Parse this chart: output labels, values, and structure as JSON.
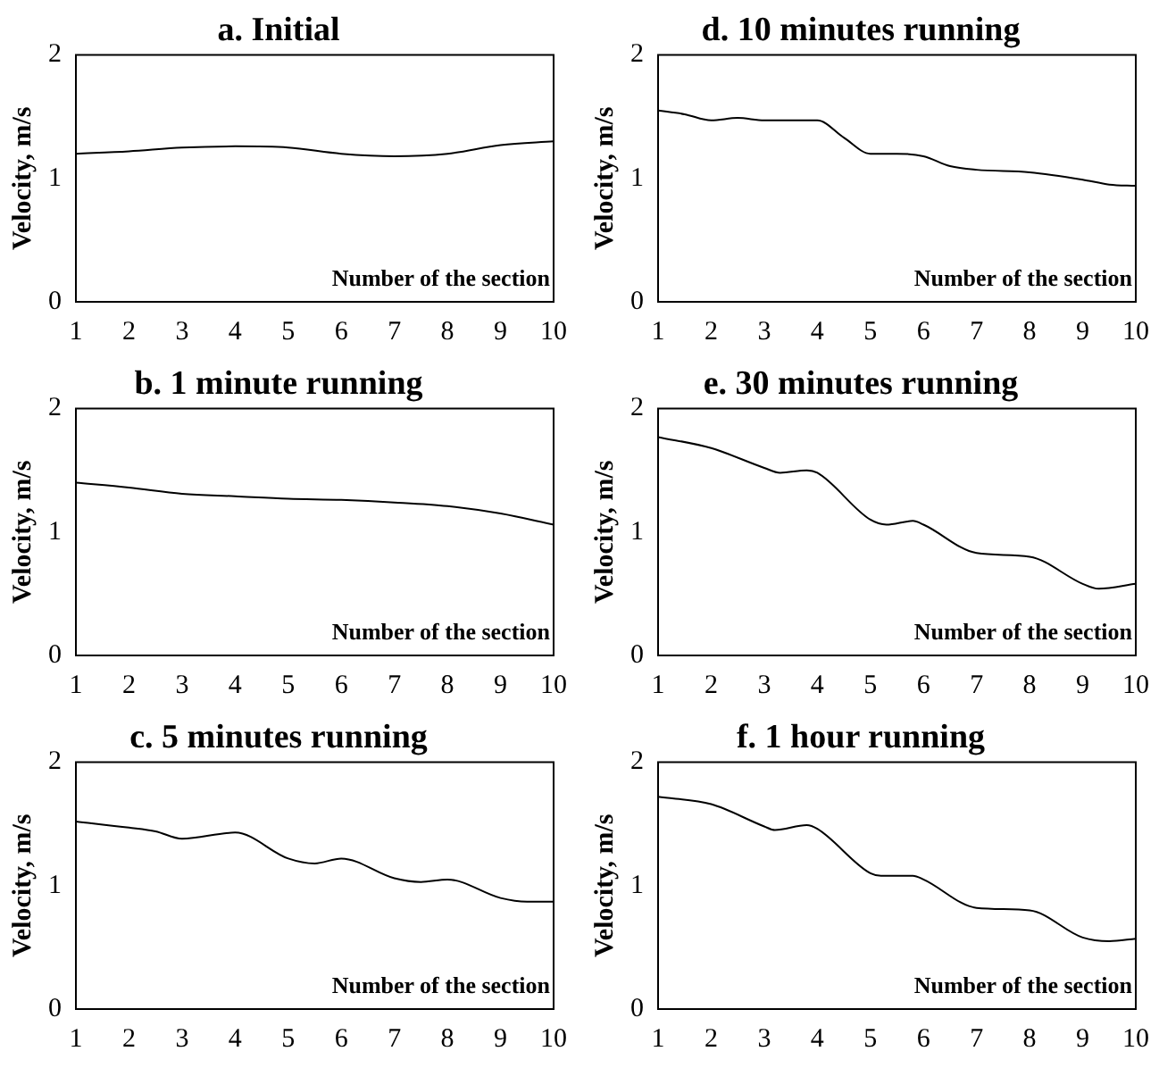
{
  "chart_data": [
    {
      "type": "line",
      "title": "a. Initial",
      "xlabel": "Number of the section",
      "ylabel": "Velocity, m/s",
      "color": "#000000",
      "xlim": [
        1,
        10
      ],
      "ylim": [
        0,
        2
      ],
      "xticks": [
        1,
        2,
        3,
        4,
        5,
        6,
        7,
        8,
        9,
        10
      ],
      "yticks": [
        0,
        1,
        2
      ],
      "x": [
        1,
        2,
        3,
        4,
        5,
        6,
        7,
        8,
        9,
        10
      ],
      "values": [
        1.2,
        1.22,
        1.25,
        1.26,
        1.25,
        1.2,
        1.18,
        1.2,
        1.27,
        1.3
      ]
    },
    {
      "type": "line",
      "title": "d. 10 minutes running",
      "xlabel": "Number of the section",
      "ylabel": "Velocity, m/s",
      "color": "#000000",
      "xlim": [
        1,
        10
      ],
      "ylim": [
        0,
        2
      ],
      "xticks": [
        1,
        2,
        3,
        4,
        5,
        6,
        7,
        8,
        9,
        10
      ],
      "yticks": [
        0,
        1,
        2
      ],
      "x": [
        1,
        1.5,
        2,
        2.5,
        3,
        4,
        4.5,
        5,
        5.5,
        6,
        6.5,
        7,
        8,
        9,
        9.5,
        10
      ],
      "values": [
        1.55,
        1.52,
        1.47,
        1.49,
        1.47,
        1.47,
        1.33,
        1.2,
        1.2,
        1.18,
        1.1,
        1.07,
        1.05,
        0.99,
        0.95,
        0.94
      ]
    },
    {
      "type": "line",
      "title": "b. 1 minute running",
      "xlabel": "Number of the section",
      "ylabel": "Velocity, m/s",
      "color": "#000000",
      "xlim": [
        1,
        10
      ],
      "ylim": [
        0,
        2
      ],
      "xticks": [
        1,
        2,
        3,
        4,
        5,
        6,
        7,
        8,
        9,
        10
      ],
      "yticks": [
        0,
        1,
        2
      ],
      "x": [
        1,
        2,
        3,
        4,
        5,
        6,
        7,
        8,
        9,
        10
      ],
      "values": [
        1.4,
        1.36,
        1.31,
        1.29,
        1.27,
        1.26,
        1.24,
        1.21,
        1.15,
        1.06
      ]
    },
    {
      "type": "line",
      "title": "e. 30 minutes running",
      "xlabel": "Number of the section",
      "ylabel": "Velocity, m/s",
      "color": "#000000",
      "xlim": [
        1,
        10
      ],
      "ylim": [
        0,
        2
      ],
      "xticks": [
        1,
        2,
        3,
        4,
        5,
        6,
        7,
        8,
        9,
        10
      ],
      "yticks": [
        0,
        1,
        2
      ],
      "x": [
        1,
        2,
        3,
        3.3,
        3.8,
        4,
        5,
        5.3,
        5.8,
        6,
        7,
        8,
        9,
        9.3,
        10
      ],
      "values": [
        1.77,
        1.68,
        1.52,
        1.48,
        1.5,
        1.48,
        1.1,
        1.06,
        1.09,
        1.06,
        0.83,
        0.8,
        0.58,
        0.54,
        0.58
      ]
    },
    {
      "type": "line",
      "title": "c. 5 minutes running",
      "xlabel": "Number of the section",
      "ylabel": "Velocity, m/s",
      "color": "#000000",
      "xlim": [
        1,
        10
      ],
      "ylim": [
        0,
        2
      ],
      "xticks": [
        1,
        2,
        3,
        4,
        5,
        6,
        7,
        8,
        9,
        10
      ],
      "yticks": [
        0,
        1,
        2
      ],
      "x": [
        1,
        2,
        2.5,
        3,
        4,
        5,
        5.5,
        6,
        7,
        7.5,
        8,
        9,
        9.5,
        10
      ],
      "values": [
        1.52,
        1.47,
        1.44,
        1.38,
        1.43,
        1.22,
        1.18,
        1.22,
        1.06,
        1.03,
        1.05,
        0.9,
        0.87,
        0.87
      ]
    },
    {
      "type": "line",
      "title": "f. 1 hour running",
      "xlabel": "Number of the section",
      "ylabel": "Velocity, m/s",
      "color": "#000000",
      "xlim": [
        1,
        10
      ],
      "ylim": [
        0,
        2
      ],
      "xticks": [
        1,
        2,
        3,
        4,
        5,
        6,
        7,
        8,
        9,
        10
      ],
      "yticks": [
        0,
        1,
        2
      ],
      "x": [
        1,
        2,
        3,
        3.2,
        3.8,
        4,
        5,
        5.2,
        5.8,
        6,
        7,
        8,
        9,
        9.5,
        10
      ],
      "values": [
        1.72,
        1.66,
        1.48,
        1.45,
        1.49,
        1.46,
        1.1,
        1.08,
        1.08,
        1.05,
        0.82,
        0.8,
        0.58,
        0.55,
        0.57
      ]
    }
  ]
}
